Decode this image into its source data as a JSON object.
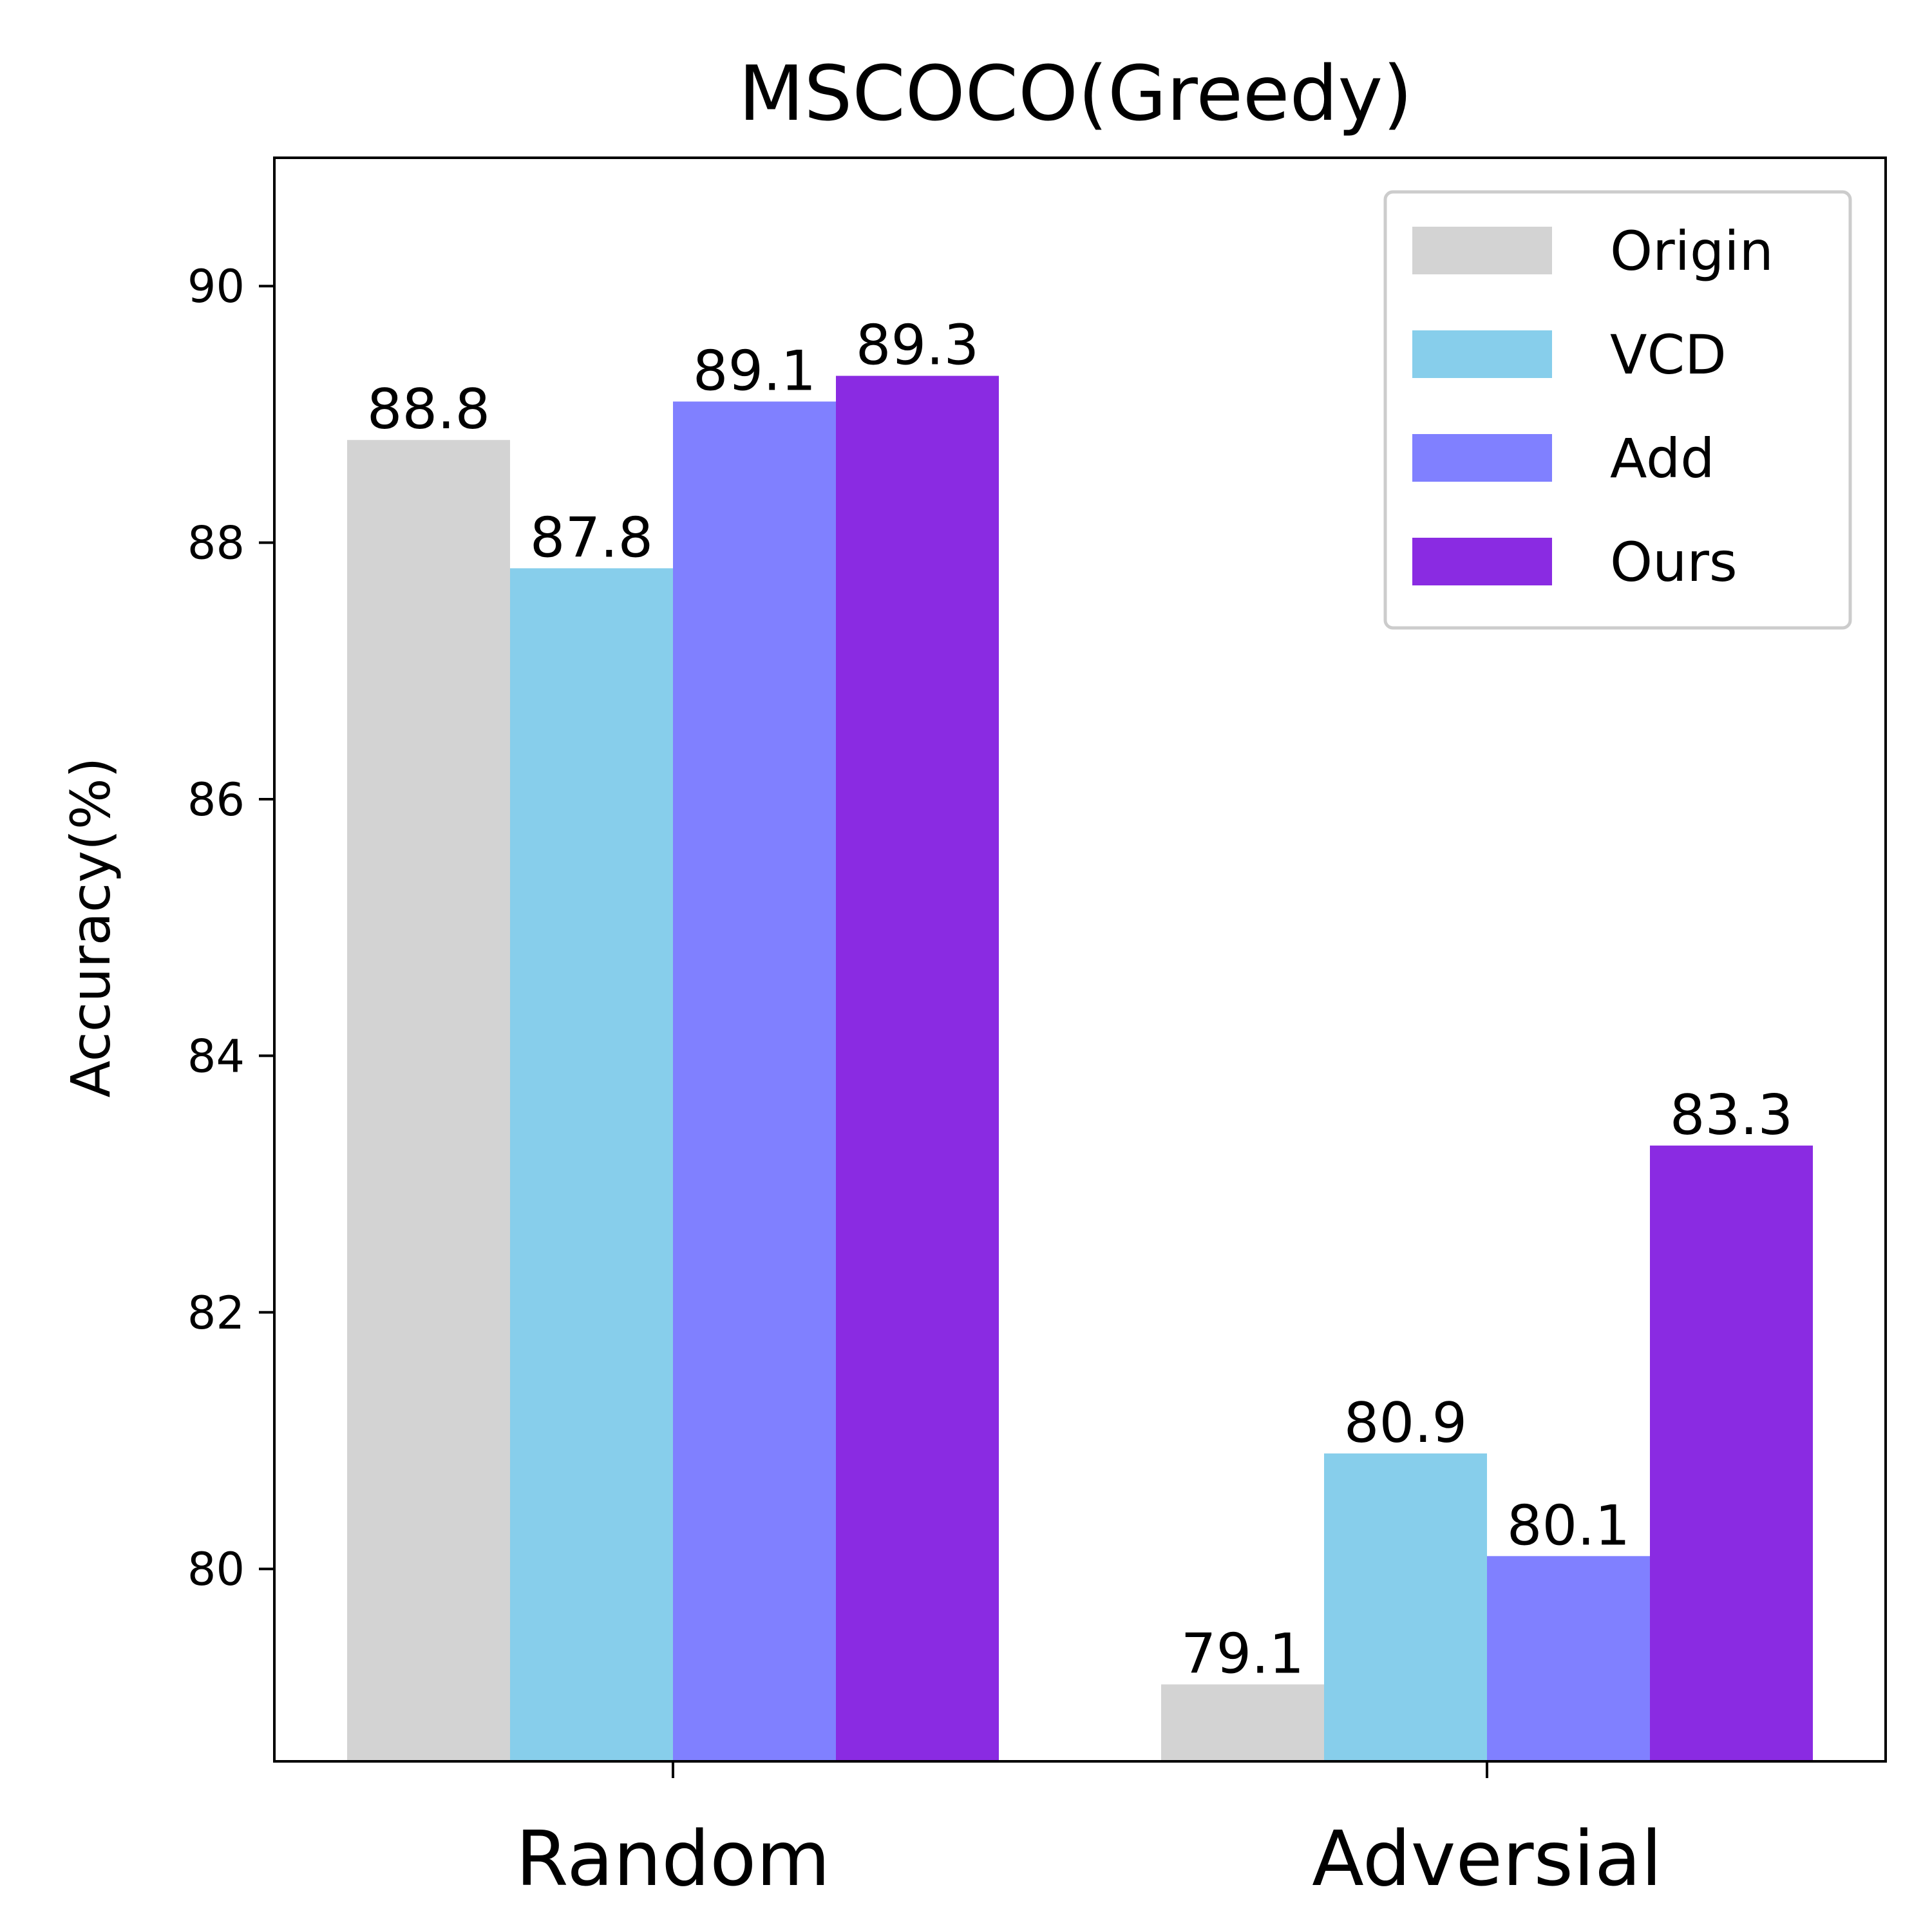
{
  "chart_data": {
    "type": "bar",
    "title": "MSCOCO(Greedy)",
    "xlabel": "",
    "ylabel": "Accuracy(%)",
    "categories": [
      "Random",
      "Adversial"
    ],
    "series": [
      {
        "name": "Origin",
        "color": "#d3d3d3",
        "values": [
          88.8,
          79.1
        ]
      },
      {
        "name": "VCD",
        "color": "#87ceeb",
        "values": [
          87.8,
          80.9
        ]
      },
      {
        "name": "Add",
        "color": "#8080ff",
        "values": [
          89.1,
          80.1
        ]
      },
      {
        "name": "Ours",
        "color": "#8a2be2",
        "values": [
          89.3,
          83.3
        ]
      }
    ],
    "value_labels": [
      [
        "88.8",
        "79.1"
      ],
      [
        "87.8",
        "80.9"
      ],
      [
        "89.1",
        "80.1"
      ],
      [
        "89.3",
        "83.3"
      ]
    ],
    "yticks": [
      {
        "value": 80,
        "label": "80"
      },
      {
        "value": 82,
        "label": "82"
      },
      {
        "value": 84,
        "label": "84"
      },
      {
        "value": 86,
        "label": "86"
      },
      {
        "value": 88,
        "label": "88"
      },
      {
        "value": 90,
        "label": "90"
      }
    ],
    "ylim": [
      78.5,
      91.0
    ],
    "grid": false,
    "legend_position": "top-right"
  }
}
